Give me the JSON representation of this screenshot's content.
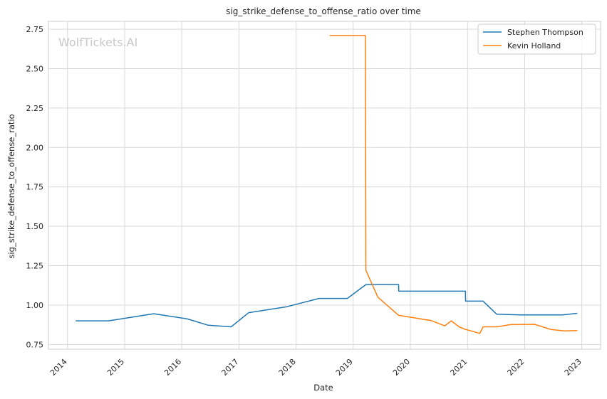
{
  "chart_data": {
    "type": "line",
    "title": "sig_strike_defense_to_offense_ratio over time",
    "xlabel": "Date",
    "ylabel": "sig_strike_defense_to_offense_ratio",
    "watermark": "WolfTickets.AI",
    "x_range": [
      "2013-09-01",
      "2023-05-01"
    ],
    "ylim": [
      0.72,
      2.8
    ],
    "x_ticks": [
      "2014",
      "2015",
      "2016",
      "2017",
      "2018",
      "2019",
      "2020",
      "2021",
      "2022",
      "2023"
    ],
    "y_ticks": [
      0.75,
      1.0,
      1.25,
      1.5,
      1.75,
      2.0,
      2.25,
      2.5,
      2.75
    ],
    "grid": true,
    "legend_position": "top-right",
    "series": [
      {
        "name": "Stephen Thompson",
        "color": "#1f77b4",
        "points": [
          [
            "2014-02-22",
            0.9
          ],
          [
            "2014-09-20",
            0.9
          ],
          [
            "2015-07-06",
            0.945
          ],
          [
            "2016-02-06",
            0.912
          ],
          [
            "2016-06-18",
            0.872
          ],
          [
            "2016-11-12",
            0.862
          ],
          [
            "2017-03-04",
            0.952
          ],
          [
            "2017-11-04",
            0.99
          ],
          [
            "2018-05-27",
            1.042
          ],
          [
            "2018-11-24",
            1.042
          ],
          [
            "2019-03-23",
            1.13
          ],
          [
            "2019-10-18",
            1.13
          ],
          [
            "2019-10-19",
            1.088
          ],
          [
            "2020-12-18",
            1.088
          ],
          [
            "2020-12-19",
            1.025
          ],
          [
            "2021-04-10",
            1.025
          ],
          [
            "2021-07-06",
            0.942
          ],
          [
            "2021-12-04",
            0.938
          ],
          [
            "2022-09-01",
            0.938
          ],
          [
            "2022-12-03",
            0.948
          ]
        ]
      },
      {
        "name": "Kevin Holland",
        "color": "#ff7f0e",
        "points": [
          [
            "2018-08-04",
            2.71
          ],
          [
            "2019-03-19",
            2.71
          ],
          [
            "2019-03-23",
            1.22
          ],
          [
            "2019-06-08",
            1.05
          ],
          [
            "2019-10-18",
            0.935
          ],
          [
            "2020-05-13",
            0.902
          ],
          [
            "2020-08-08",
            0.868
          ],
          [
            "2020-09-19",
            0.9
          ],
          [
            "2020-11-07",
            0.862
          ],
          [
            "2020-12-12",
            0.848
          ],
          [
            "2021-03-20",
            0.82
          ],
          [
            "2021-04-10",
            0.862
          ],
          [
            "2021-07-10",
            0.862
          ],
          [
            "2021-10-02",
            0.876
          ],
          [
            "2022-03-05",
            0.878
          ],
          [
            "2022-06-18",
            0.845
          ],
          [
            "2022-09-10",
            0.836
          ],
          [
            "2022-12-03",
            0.838
          ]
        ]
      }
    ]
  }
}
